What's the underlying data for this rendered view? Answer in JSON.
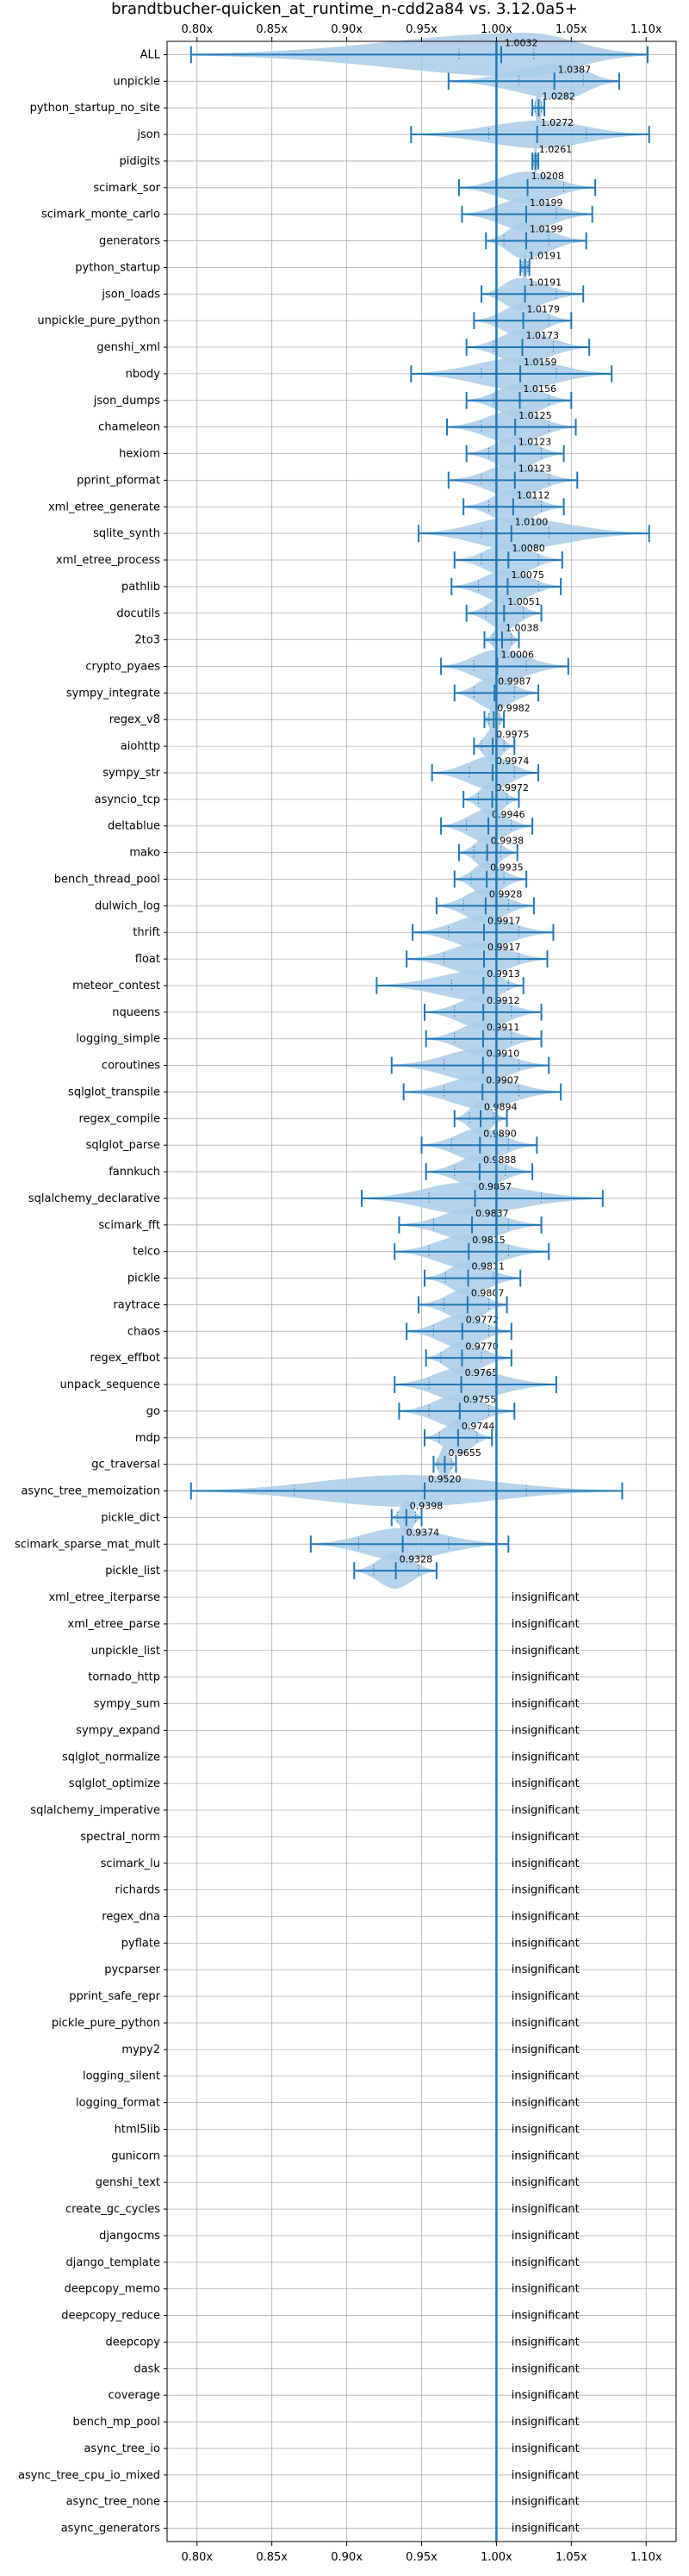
{
  "chart_data": {
    "type": "violin",
    "title": "brandtbucher-quicken_at_runtime_n-cdd2a84 vs. 3.12.0a5+",
    "xlabel": "",
    "ylabel": "",
    "xlim": [
      0.78,
      1.12
    ],
    "x_ticks": [
      {
        "value": 0.8,
        "label": "0.80x"
      },
      {
        "value": 0.85,
        "label": "0.85x"
      },
      {
        "value": 0.9,
        "label": "0.90x"
      },
      {
        "value": 0.95,
        "label": "0.95x"
      },
      {
        "value": 1.0,
        "label": "1.00x"
      },
      {
        "value": 1.05,
        "label": "1.05x"
      },
      {
        "value": 1.1,
        "label": "1.10x"
      }
    ],
    "reference_line": 1.0,
    "grid": true,
    "insignificant_label": "insignificant",
    "colors": {
      "violin": "#a9cbe8",
      "whisker": "#1f77b4",
      "grid": "#b0b0b0"
    },
    "benchmarks": [
      {
        "name": "ALL",
        "label": "1.0032",
        "mean": 1.0032,
        "min": 0.796,
        "max": 1.101,
        "q1": 0.975,
        "q3": 1.025,
        "peak": 1.02,
        "halfwidth": 0.55
      },
      {
        "name": "unpickle",
        "label": "1.0387",
        "mean": 1.0387,
        "min": 0.968,
        "max": 1.082,
        "q1": 1.015,
        "q3": 1.058,
        "peak": 1.045,
        "halfwidth": 0.45
      },
      {
        "name": "python_startup_no_site",
        "label": "1.0282",
        "mean": 1.0282,
        "min": 1.024,
        "max": 1.032,
        "q1": 1.026,
        "q3": 1.03,
        "peak": 1.028,
        "halfwidth": 0.45
      },
      {
        "name": "json",
        "label": "1.0272",
        "mean": 1.0272,
        "min": 0.943,
        "max": 1.102,
        "q1": 0.995,
        "q3": 1.06,
        "peak": 1.03,
        "halfwidth": 0.35
      },
      {
        "name": "pidigits",
        "label": "1.0261",
        "mean": 1.0261,
        "min": 1.024,
        "max": 1.028,
        "q1": 1.025,
        "q3": 1.027,
        "peak": 1.026,
        "halfwidth": 0.45
      },
      {
        "name": "scimark_sor",
        "label": "1.0208",
        "mean": 1.0208,
        "min": 0.975,
        "max": 1.066,
        "q1": 1.0,
        "q3": 1.045,
        "peak": 1.02,
        "halfwidth": 0.4
      },
      {
        "name": "scimark_monte_carlo",
        "label": "1.0199",
        "mean": 1.0199,
        "min": 0.977,
        "max": 1.064,
        "q1": 1.0,
        "q3": 1.04,
        "peak": 1.02,
        "halfwidth": 0.42
      },
      {
        "name": "generators",
        "label": "1.0199",
        "mean": 1.0199,
        "min": 0.993,
        "max": 1.06,
        "q1": 1.005,
        "q3": 1.035,
        "peak": 1.018,
        "halfwidth": 0.45
      },
      {
        "name": "python_startup",
        "label": "1.0191",
        "mean": 1.0191,
        "min": 1.016,
        "max": 1.022,
        "q1": 1.017,
        "q3": 1.021,
        "peak": 1.019,
        "halfwidth": 0.45
      },
      {
        "name": "json_loads",
        "label": "1.0191",
        "mean": 1.0191,
        "min": 0.99,
        "max": 1.058,
        "q1": 1.0,
        "q3": 1.04,
        "peak": 1.015,
        "halfwidth": 0.4
      },
      {
        "name": "unpickle_pure_python",
        "label": "1.0179",
        "mean": 1.0179,
        "min": 0.985,
        "max": 1.05,
        "q1": 1.0,
        "q3": 1.035,
        "peak": 1.018,
        "halfwidth": 0.42
      },
      {
        "name": "genshi_xml",
        "label": "1.0173",
        "mean": 1.0173,
        "min": 0.98,
        "max": 1.062,
        "q1": 0.998,
        "q3": 1.038,
        "peak": 1.017,
        "halfwidth": 0.42
      },
      {
        "name": "nbody",
        "label": "1.0159",
        "mean": 1.0159,
        "min": 0.943,
        "max": 1.077,
        "q1": 0.99,
        "q3": 1.04,
        "peak": 1.015,
        "halfwidth": 0.4
      },
      {
        "name": "json_dumps",
        "label": "1.0156",
        "mean": 1.0156,
        "min": 0.98,
        "max": 1.05,
        "q1": 0.998,
        "q3": 1.035,
        "peak": 1.015,
        "halfwidth": 0.42
      },
      {
        "name": "chameleon",
        "label": "1.0125",
        "mean": 1.0125,
        "min": 0.967,
        "max": 1.053,
        "q1": 0.99,
        "q3": 1.035,
        "peak": 1.012,
        "halfwidth": 0.42
      },
      {
        "name": "hexiom",
        "label": "1.0123",
        "mean": 1.0123,
        "min": 0.98,
        "max": 1.045,
        "q1": 0.995,
        "q3": 1.03,
        "peak": 1.012,
        "halfwidth": 0.42
      },
      {
        "name": "pprint_pformat",
        "label": "1.0123",
        "mean": 1.0123,
        "min": 0.968,
        "max": 1.054,
        "q1": 0.99,
        "q3": 1.035,
        "peak": 1.012,
        "halfwidth": 0.42
      },
      {
        "name": "xml_etree_generate",
        "label": "1.0112",
        "mean": 1.0112,
        "min": 0.978,
        "max": 1.045,
        "q1": 0.995,
        "q3": 1.03,
        "peak": 1.011,
        "halfwidth": 0.42
      },
      {
        "name": "sqlite_synth",
        "label": "1.0100",
        "mean": 1.01,
        "min": 0.948,
        "max": 1.102,
        "q1": 0.99,
        "q3": 1.035,
        "peak": 1.01,
        "halfwidth": 0.4
      },
      {
        "name": "xml_etree_process",
        "label": "1.0080",
        "mean": 1.008,
        "min": 0.972,
        "max": 1.044,
        "q1": 0.99,
        "q3": 1.028,
        "peak": 1.008,
        "halfwidth": 0.42
      },
      {
        "name": "pathlib",
        "label": "1.0075",
        "mean": 1.0075,
        "min": 0.97,
        "max": 1.043,
        "q1": 0.988,
        "q3": 1.028,
        "peak": 1.007,
        "halfwidth": 0.42
      },
      {
        "name": "docutils",
        "label": "1.0051",
        "mean": 1.0051,
        "min": 0.98,
        "max": 1.03,
        "q1": 0.993,
        "q3": 1.018,
        "peak": 1.005,
        "halfwidth": 0.42
      },
      {
        "name": "2to3",
        "label": "1.0038",
        "mean": 1.0038,
        "min": 0.992,
        "max": 1.015,
        "q1": 0.998,
        "q3": 1.01,
        "peak": 1.004,
        "halfwidth": 0.45
      },
      {
        "name": "crypto_pyaes",
        "label": "1.0006",
        "mean": 1.0006,
        "min": 0.963,
        "max": 1.048,
        "q1": 0.985,
        "q3": 1.02,
        "peak": 1.0,
        "halfwidth": 0.42
      },
      {
        "name": "sympy_integrate",
        "label": "0.9987",
        "mean": 0.9987,
        "min": 0.972,
        "max": 1.028,
        "q1": 0.985,
        "q3": 1.012,
        "peak": 0.998,
        "halfwidth": 0.42
      },
      {
        "name": "regex_v8",
        "label": "0.9982",
        "mean": 0.9982,
        "min": 0.992,
        "max": 1.005,
        "q1": 0.995,
        "q3": 1.002,
        "peak": 0.998,
        "halfwidth": 0.45
      },
      {
        "name": "aiohttp",
        "label": "0.9975",
        "mean": 0.9975,
        "min": 0.985,
        "max": 1.012,
        "q1": 0.99,
        "q3": 1.005,
        "peak": 0.997,
        "halfwidth": 0.42
      },
      {
        "name": "sympy_str",
        "label": "0.9974",
        "mean": 0.9974,
        "min": 0.957,
        "max": 1.028,
        "q1": 0.982,
        "q3": 1.012,
        "peak": 0.997,
        "halfwidth": 0.42
      },
      {
        "name": "asyncio_tcp",
        "label": "0.9972",
        "mean": 0.9972,
        "min": 0.978,
        "max": 1.015,
        "q1": 0.988,
        "q3": 1.007,
        "peak": 0.997,
        "halfwidth": 0.42
      },
      {
        "name": "deltablue",
        "label": "0.9946",
        "mean": 0.9946,
        "min": 0.963,
        "max": 1.024,
        "q1": 0.98,
        "q3": 1.01,
        "peak": 0.994,
        "halfwidth": 0.42
      },
      {
        "name": "mako",
        "label": "0.9938",
        "mean": 0.9938,
        "min": 0.975,
        "max": 1.014,
        "q1": 0.985,
        "q3": 1.003,
        "peak": 0.994,
        "halfwidth": 0.42
      },
      {
        "name": "bench_thread_pool",
        "label": "0.9935",
        "mean": 0.9935,
        "min": 0.972,
        "max": 1.02,
        "q1": 0.983,
        "q3": 1.005,
        "peak": 0.993,
        "halfwidth": 0.42
      },
      {
        "name": "dulwich_log",
        "label": "0.9928",
        "mean": 0.9928,
        "min": 0.96,
        "max": 1.025,
        "q1": 0.978,
        "q3": 1.008,
        "peak": 0.992,
        "halfwidth": 0.42
      },
      {
        "name": "thrift",
        "label": "0.9917",
        "mean": 0.9917,
        "min": 0.944,
        "max": 1.038,
        "q1": 0.968,
        "q3": 1.015,
        "peak": 0.99,
        "halfwidth": 0.42
      },
      {
        "name": "float",
        "label": "0.9917",
        "mean": 0.9917,
        "min": 0.94,
        "max": 1.034,
        "q1": 0.965,
        "q3": 1.015,
        "peak": 0.99,
        "halfwidth": 0.42
      },
      {
        "name": "meteor_contest",
        "label": "0.9913",
        "mean": 0.9913,
        "min": 0.92,
        "max": 1.018,
        "q1": 0.97,
        "q3": 1.008,
        "peak": 0.992,
        "halfwidth": 0.4
      },
      {
        "name": "nqueens",
        "label": "0.9912",
        "mean": 0.9912,
        "min": 0.952,
        "max": 1.03,
        "q1": 0.972,
        "q3": 1.01,
        "peak": 0.991,
        "halfwidth": 0.42
      },
      {
        "name": "logging_simple",
        "label": "0.9911",
        "mean": 0.9911,
        "min": 0.953,
        "max": 1.03,
        "q1": 0.972,
        "q3": 1.01,
        "peak": 0.991,
        "halfwidth": 0.42
      },
      {
        "name": "coroutines",
        "label": "0.9910",
        "mean": 0.991,
        "min": 0.93,
        "max": 1.035,
        "q1": 0.965,
        "q3": 1.015,
        "peak": 0.99,
        "halfwidth": 0.42
      },
      {
        "name": "sqlglot_transpile",
        "label": "0.9907",
        "mean": 0.9907,
        "min": 0.938,
        "max": 1.043,
        "q1": 0.965,
        "q3": 1.015,
        "peak": 0.99,
        "halfwidth": 0.42
      },
      {
        "name": "regex_compile",
        "label": "0.9894",
        "mean": 0.9894,
        "min": 0.972,
        "max": 1.007,
        "q1": 0.982,
        "q3": 0.998,
        "peak": 0.989,
        "halfwidth": 0.42
      },
      {
        "name": "sqlglot_parse",
        "label": "0.9890",
        "mean": 0.989,
        "min": 0.95,
        "max": 1.027,
        "q1": 0.97,
        "q3": 1.008,
        "peak": 0.989,
        "halfwidth": 0.42
      },
      {
        "name": "fannkuch",
        "label": "0.9888",
        "mean": 0.9888,
        "min": 0.953,
        "max": 1.024,
        "q1": 0.972,
        "q3": 1.006,
        "peak": 0.989,
        "halfwidth": 0.42
      },
      {
        "name": "sqlalchemy_declarative",
        "label": "0.9857",
        "mean": 0.9857,
        "min": 0.91,
        "max": 1.071,
        "q1": 0.955,
        "q3": 1.03,
        "peak": 0.98,
        "halfwidth": 0.4
      },
      {
        "name": "scimark_fft",
        "label": "0.9837",
        "mean": 0.9837,
        "min": 0.935,
        "max": 1.03,
        "q1": 0.958,
        "q3": 1.008,
        "peak": 0.984,
        "halfwidth": 0.42
      },
      {
        "name": "telco",
        "label": "0.9815",
        "mean": 0.9815,
        "min": 0.932,
        "max": 1.035,
        "q1": 0.955,
        "q3": 1.008,
        "peak": 0.98,
        "halfwidth": 0.42
      },
      {
        "name": "pickle",
        "label": "0.9811",
        "mean": 0.9811,
        "min": 0.952,
        "max": 1.016,
        "q1": 0.966,
        "q3": 0.998,
        "peak": 0.981,
        "halfwidth": 0.42
      },
      {
        "name": "raytrace",
        "label": "0.9807",
        "mean": 0.9807,
        "min": 0.948,
        "max": 1.007,
        "q1": 0.965,
        "q3": 0.995,
        "peak": 0.981,
        "halfwidth": 0.42
      },
      {
        "name": "chaos",
        "label": "0.9772",
        "mean": 0.9772,
        "min": 0.94,
        "max": 1.01,
        "q1": 0.958,
        "q3": 0.995,
        "peak": 0.977,
        "halfwidth": 0.42
      },
      {
        "name": "regex_effbot",
        "label": "0.9770",
        "mean": 0.977,
        "min": 0.953,
        "max": 1.01,
        "q1": 0.963,
        "q3": 0.99,
        "peak": 0.977,
        "halfwidth": 0.42
      },
      {
        "name": "unpack_sequence",
        "label": "0.9765",
        "mean": 0.9765,
        "min": 0.932,
        "max": 1.04,
        "q1": 0.955,
        "q3": 1.0,
        "peak": 0.976,
        "halfwidth": 0.42
      },
      {
        "name": "go",
        "label": "0.9755",
        "mean": 0.9755,
        "min": 0.935,
        "max": 1.012,
        "q1": 0.955,
        "q3": 0.995,
        "peak": 0.975,
        "halfwidth": 0.42
      },
      {
        "name": "mdp",
        "label": "0.9744",
        "mean": 0.9744,
        "min": 0.952,
        "max": 0.997,
        "q1": 0.962,
        "q3": 0.987,
        "peak": 0.974,
        "halfwidth": 0.42
      },
      {
        "name": "gc_traversal",
        "label": "0.9655",
        "mean": 0.9655,
        "min": 0.958,
        "max": 0.973,
        "q1": 0.961,
        "q3": 0.97,
        "peak": 0.965,
        "halfwidth": 0.45
      },
      {
        "name": "async_tree_memoization",
        "label": "0.9520",
        "mean": 0.952,
        "min": 0.796,
        "max": 1.084,
        "q1": 0.865,
        "q3": 1.02,
        "peak": 0.94,
        "halfwidth": 0.4
      },
      {
        "name": "pickle_dict",
        "label": "0.9398",
        "mean": 0.9398,
        "min": 0.93,
        "max": 0.95,
        "q1": 0.934,
        "q3": 0.946,
        "peak": 0.94,
        "halfwidth": 0.45
      },
      {
        "name": "scimark_sparse_mat_mult",
        "label": "0.9374",
        "mean": 0.9374,
        "min": 0.876,
        "max": 1.008,
        "q1": 0.908,
        "q3": 0.968,
        "peak": 0.935,
        "halfwidth": 0.4
      },
      {
        "name": "pickle_list",
        "label": "0.9328",
        "mean": 0.9328,
        "min": 0.905,
        "max": 0.96,
        "q1": 0.918,
        "q3": 0.948,
        "peak": 0.932,
        "halfwidth": 0.45
      },
      {
        "name": "xml_etree_iterparse",
        "insignificant": true
      },
      {
        "name": "xml_etree_parse",
        "insignificant": true
      },
      {
        "name": "unpickle_list",
        "insignificant": true
      },
      {
        "name": "tornado_http",
        "insignificant": true
      },
      {
        "name": "sympy_sum",
        "insignificant": true
      },
      {
        "name": "sympy_expand",
        "insignificant": true
      },
      {
        "name": "sqlglot_normalize",
        "insignificant": true
      },
      {
        "name": "sqlglot_optimize",
        "insignificant": true
      },
      {
        "name": "sqlalchemy_imperative",
        "insignificant": true
      },
      {
        "name": "spectral_norm",
        "insignificant": true
      },
      {
        "name": "scimark_lu",
        "insignificant": true
      },
      {
        "name": "richards",
        "insignificant": true
      },
      {
        "name": "regex_dna",
        "insignificant": true
      },
      {
        "name": "pyflate",
        "insignificant": true
      },
      {
        "name": "pycparser",
        "insignificant": true
      },
      {
        "name": "pprint_safe_repr",
        "insignificant": true
      },
      {
        "name": "pickle_pure_python",
        "insignificant": true
      },
      {
        "name": "mypy2",
        "insignificant": true
      },
      {
        "name": "logging_silent",
        "insignificant": true
      },
      {
        "name": "logging_format",
        "insignificant": true
      },
      {
        "name": "html5lib",
        "insignificant": true
      },
      {
        "name": "gunicorn",
        "insignificant": true
      },
      {
        "name": "genshi_text",
        "insignificant": true
      },
      {
        "name": "create_gc_cycles",
        "insignificant": true
      },
      {
        "name": "djangocms",
        "insignificant": true
      },
      {
        "name": "django_template",
        "insignificant": true
      },
      {
        "name": "deepcopy_memo",
        "insignificant": true
      },
      {
        "name": "deepcopy_reduce",
        "insignificant": true
      },
      {
        "name": "deepcopy",
        "insignificant": true
      },
      {
        "name": "dask",
        "insignificant": true
      },
      {
        "name": "coverage",
        "insignificant": true
      },
      {
        "name": "bench_mp_pool",
        "insignificant": true
      },
      {
        "name": "async_tree_io",
        "insignificant": true
      },
      {
        "name": "async_tree_cpu_io_mixed",
        "insignificant": true
      },
      {
        "name": "async_tree_none",
        "insignificant": true
      },
      {
        "name": "async_generators",
        "insignificant": true
      }
    ]
  }
}
